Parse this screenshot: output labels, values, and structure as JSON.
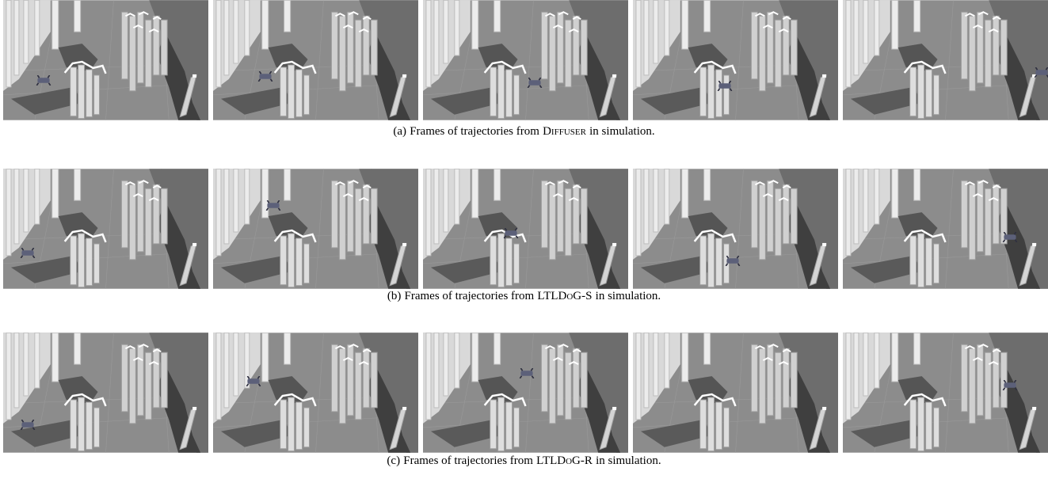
{
  "figure": {
    "rows": [
      {
        "label": "(a)",
        "caption_before": "Frames of trajectories from",
        "method": "Diffuser",
        "caption_after": "in simulation."
      },
      {
        "label": "(b)",
        "caption_before": "Frames of trajectories from",
        "method": "LTLDoG-S",
        "caption_after": "in simulation."
      },
      {
        "label": "(c)",
        "caption_before": "Frames of trajectories from",
        "method": "LTLDoG-R",
        "caption_after": "in simulation."
      }
    ]
  }
}
